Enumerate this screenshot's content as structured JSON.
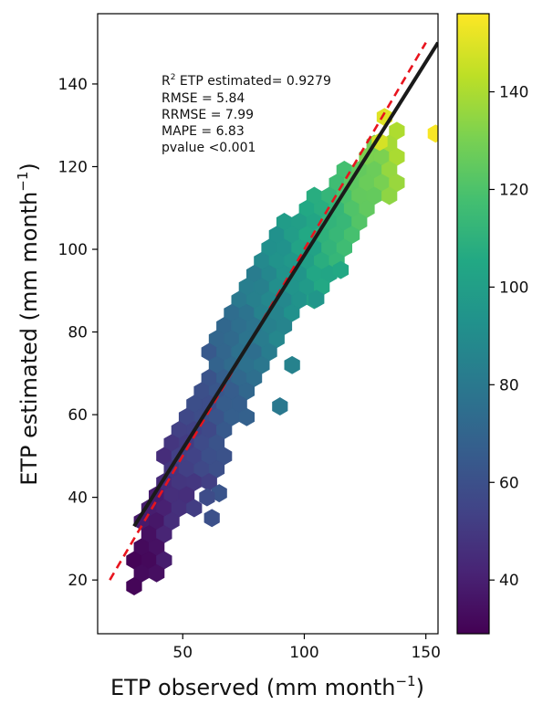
{
  "chart_data": {
    "type": "scatter",
    "subtype": "hexbin",
    "title": "",
    "xlabel": "ETP observed (mm month",
    "ylabel": "ETP estimated (mm month",
    "label_exponent": "−1",
    "xlim": [
      15,
      155
    ],
    "ylim": [
      7,
      157
    ],
    "xticks": [
      50,
      100,
      150
    ],
    "yticks": [
      20,
      40,
      60,
      80,
      100,
      120,
      140
    ],
    "grid": false,
    "stats": {
      "r2_label": "R",
      "r2_superscript": "2",
      "r2_text": " ETP estimated= 0.9279",
      "lines": [
        "RMSE = 5.84",
        "RRMSE = 7.99",
        "MAPE = 6.83",
        "pvalue <0.001"
      ]
    },
    "regression_line": {
      "x": [
        30,
        155
      ],
      "y": [
        33,
        150
      ],
      "color": "#1a1a1a",
      "name": ""
    },
    "identity_line": {
      "x": [
        20,
        150
      ],
      "y": [
        20,
        150
      ],
      "color": "#e8141e",
      "style": "dashed",
      "name": ""
    },
    "colorbar": {
      "range": [
        29,
        156
      ],
      "ticks": [
        40,
        60,
        80,
        100,
        120,
        140
      ],
      "colormap": "viridis"
    },
    "band": {
      "description_free": true,
      "x_from": 30,
      "x_to": 140,
      "lower_edge": [
        [
          30,
          14
        ],
        [
          40,
          21
        ],
        [
          50,
          34
        ],
        [
          60,
          43
        ],
        [
          70,
          53
        ],
        [
          80,
          64
        ],
        [
          90,
          74
        ],
        [
          100,
          83
        ],
        [
          110,
          92
        ],
        [
          120,
          101
        ],
        [
          130,
          108
        ],
        [
          140,
          113
        ]
      ],
      "upper_edge": [
        [
          30,
          30
        ],
        [
          40,
          46
        ],
        [
          50,
          61
        ],
        [
          60,
          75
        ],
        [
          70,
          89
        ],
        [
          80,
          97
        ],
        [
          90,
          105
        ],
        [
          100,
          110
        ],
        [
          110,
          117
        ],
        [
          120,
          123
        ],
        [
          130,
          128
        ],
        [
          140,
          130
        ]
      ]
    },
    "extra_points": [
      {
        "x": 133,
        "y": 132,
        "c": 150
      },
      {
        "x": 131,
        "y": 126,
        "c": 148
      },
      {
        "x": 154,
        "y": 128,
        "c": 155
      },
      {
        "x": 65,
        "y": 41,
        "c": 62
      },
      {
        "x": 62,
        "y": 35,
        "c": 60
      },
      {
        "x": 60,
        "y": 40,
        "c": 58
      },
      {
        "x": 90,
        "y": 62,
        "c": 80
      },
      {
        "x": 95,
        "y": 72,
        "c": 85
      },
      {
        "x": 105,
        "y": 88,
        "c": 95
      },
      {
        "x": 115,
        "y": 95,
        "c": 105
      }
    ]
  }
}
